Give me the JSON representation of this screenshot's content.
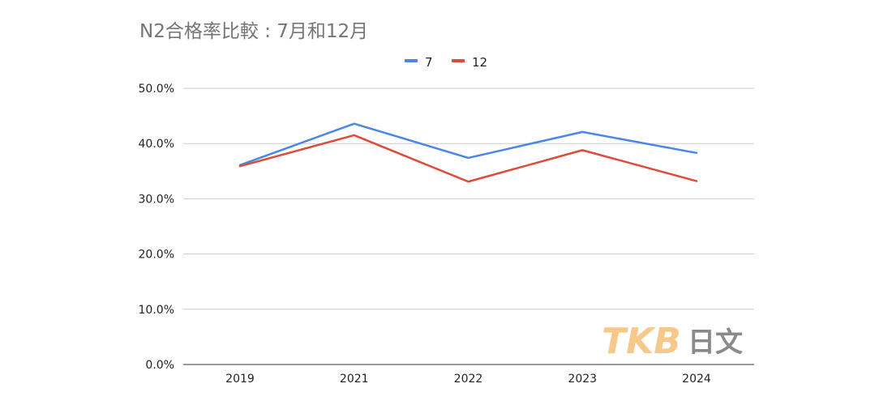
{
  "chart_data": {
    "type": "line",
    "title": "N2合格率比較 : 7月和12月",
    "xlabel": "",
    "ylabel": "",
    "categories": [
      "2019",
      "2021",
      "2022",
      "2023",
      "2024"
    ],
    "series": [
      {
        "name": "7",
        "color": "#4a86e8",
        "values": [
          36.1,
          43.6,
          37.4,
          42.1,
          38.3
        ]
      },
      {
        "name": "12",
        "color": "#dd4b39",
        "values": [
          35.9,
          41.5,
          33.1,
          38.8,
          33.2
        ]
      }
    ],
    "ylim": [
      0,
      50
    ],
    "yticks": [
      "0.0%",
      "10.0%",
      "20.0%",
      "30.0%",
      "40.0%",
      "50.0%"
    ],
    "grid": true,
    "legend_position": "top-center"
  },
  "watermark": {
    "latin": "TKB",
    "cjk": "日文"
  }
}
